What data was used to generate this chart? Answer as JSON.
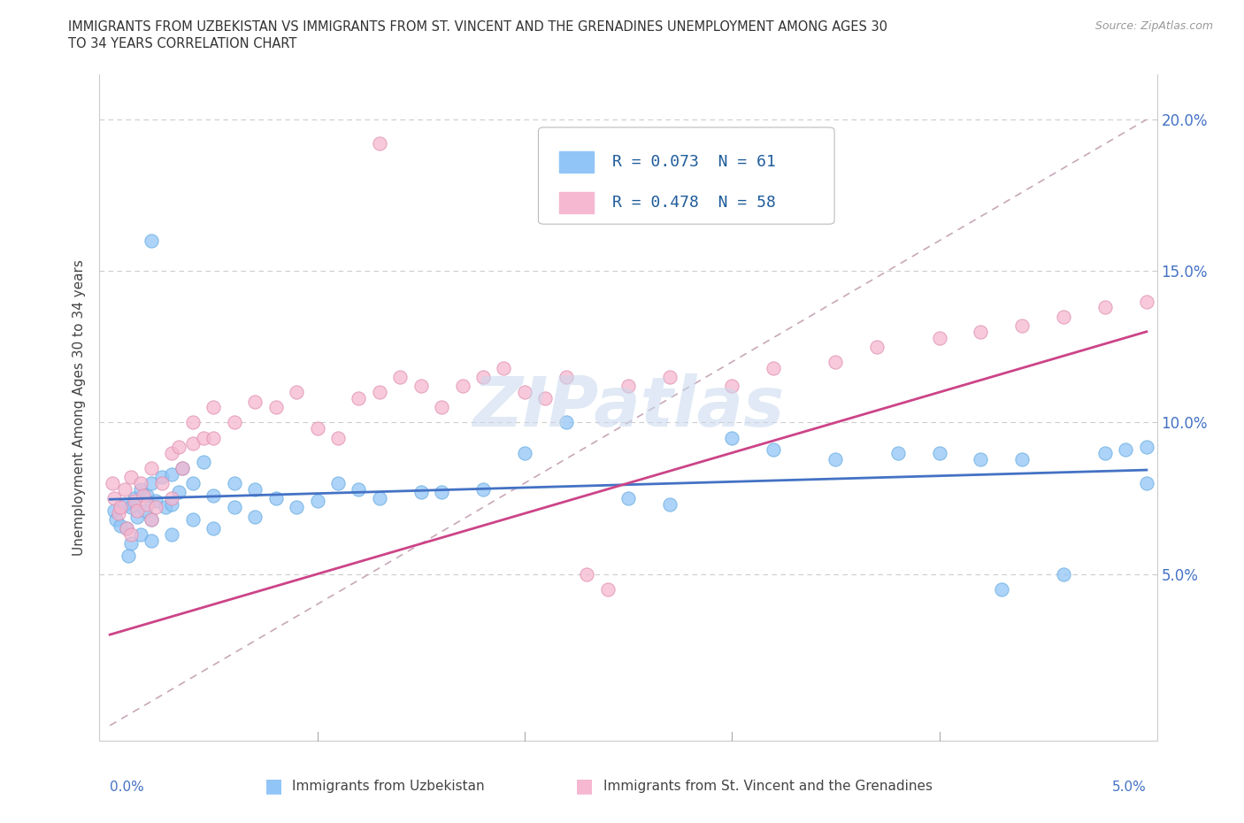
{
  "title_line1": "IMMIGRANTS FROM UZBEKISTAN VS IMMIGRANTS FROM ST. VINCENT AND THE GRENADINES UNEMPLOYMENT AMONG AGES 30",
  "title_line2": "TO 34 YEARS CORRELATION CHART",
  "source": "Source: ZipAtlas.com",
  "ylabel": "Unemployment Among Ages 30 to 34 years",
  "color_uzbekistan": "#92C5F7",
  "color_uzbekistan_edge": "#6AAEE0",
  "color_svg": "#F5B8D0",
  "color_svg_edge": "#E090B0",
  "trendline_uzbekistan": "#4472C4",
  "trendline_svg": "#CC4488",
  "diagonal_color": "#C8A8B8",
  "grid_color": "#CCCCCC",
  "xlim": [
    0.0,
    0.05
  ],
  "ylim": [
    0.0,
    0.21
  ],
  "ytick_vals": [
    0.05,
    0.1,
    0.15,
    0.2
  ],
  "ytick_labels": [
    "5.0%",
    "10.0%",
    "15.0%",
    "20.0%"
  ],
  "watermark": "ZIPatlas",
  "legend_r1": "R = 0.073  N = 61",
  "legend_r2": "R = 0.478  N = 58",
  "legend1_label": "Immigrants from Uzbekistan",
  "legend2_label": "Immigrants from St. Vincent and the Grenadines",
  "uz_x": [
    0.0002,
    0.0003,
    0.0005,
    0.0007,
    0.0008,
    0.001,
    0.001,
    0.0012,
    0.0013,
    0.0015,
    0.0015,
    0.0017,
    0.0018,
    0.002,
    0.002,
    0.002,
    0.0022,
    0.0025,
    0.0027,
    0.003,
    0.003,
    0.003,
    0.0033,
    0.0035,
    0.004,
    0.004,
    0.0045,
    0.005,
    0.005,
    0.006,
    0.006,
    0.007,
    0.007,
    0.008,
    0.009,
    0.01,
    0.011,
    0.012,
    0.013,
    0.015,
    0.016,
    0.018,
    0.02,
    0.022,
    0.025,
    0.027,
    0.03,
    0.032,
    0.035,
    0.038,
    0.04,
    0.042,
    0.043,
    0.044,
    0.046,
    0.048,
    0.049,
    0.05,
    0.05,
    0.0009,
    0.002
  ],
  "uz_y": [
    0.071,
    0.068,
    0.066,
    0.073,
    0.065,
    0.072,
    0.06,
    0.075,
    0.069,
    0.078,
    0.063,
    0.071,
    0.076,
    0.08,
    0.068,
    0.061,
    0.074,
    0.082,
    0.072,
    0.083,
    0.073,
    0.063,
    0.077,
    0.085,
    0.08,
    0.068,
    0.087,
    0.076,
    0.065,
    0.08,
    0.072,
    0.078,
    0.069,
    0.075,
    0.072,
    0.074,
    0.08,
    0.078,
    0.075,
    0.077,
    0.077,
    0.078,
    0.09,
    0.1,
    0.075,
    0.073,
    0.095,
    0.091,
    0.088,
    0.09,
    0.09,
    0.088,
    0.045,
    0.088,
    0.05,
    0.09,
    0.091,
    0.08,
    0.092,
    0.056,
    0.16
  ],
  "svg_x": [
    0.0001,
    0.0002,
    0.0004,
    0.0005,
    0.0007,
    0.0008,
    0.001,
    0.001,
    0.0012,
    0.0013,
    0.0015,
    0.0016,
    0.0018,
    0.002,
    0.002,
    0.0022,
    0.0025,
    0.003,
    0.003,
    0.0033,
    0.0035,
    0.004,
    0.004,
    0.0045,
    0.005,
    0.005,
    0.006,
    0.007,
    0.008,
    0.009,
    0.01,
    0.011,
    0.012,
    0.013,
    0.014,
    0.015,
    0.016,
    0.017,
    0.018,
    0.019,
    0.02,
    0.021,
    0.022,
    0.023,
    0.024,
    0.025,
    0.027,
    0.03,
    0.032,
    0.035,
    0.037,
    0.04,
    0.042,
    0.044,
    0.046,
    0.048,
    0.05,
    0.013
  ],
  "svg_y": [
    0.08,
    0.075,
    0.07,
    0.072,
    0.078,
    0.065,
    0.082,
    0.063,
    0.074,
    0.071,
    0.08,
    0.076,
    0.073,
    0.085,
    0.068,
    0.072,
    0.08,
    0.09,
    0.075,
    0.092,
    0.085,
    0.1,
    0.093,
    0.095,
    0.105,
    0.095,
    0.1,
    0.107,
    0.105,
    0.11,
    0.098,
    0.095,
    0.108,
    0.11,
    0.115,
    0.112,
    0.105,
    0.112,
    0.115,
    0.118,
    0.11,
    0.108,
    0.115,
    0.05,
    0.045,
    0.112,
    0.115,
    0.112,
    0.118,
    0.12,
    0.125,
    0.128,
    0.13,
    0.132,
    0.135,
    0.138,
    0.14,
    0.192
  ]
}
